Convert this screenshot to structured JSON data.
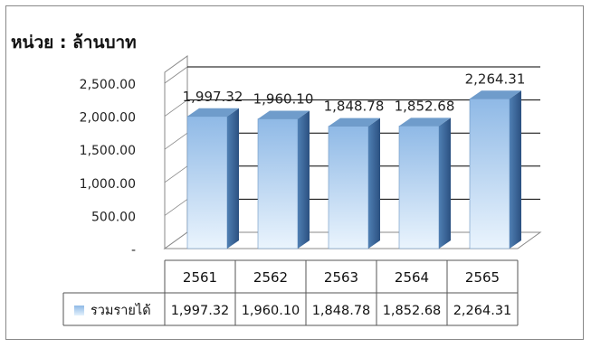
{
  "unit_label": "หน่วย : ล้านบาท",
  "chart_data": {
    "type": "bar",
    "title": "",
    "unit": "หน่วย : ล้านบาท",
    "categories": [
      "2561",
      "2562",
      "2563",
      "2564",
      "2565"
    ],
    "series": [
      {
        "name": "รวมรายได้",
        "values": [
          1997.32,
          1960.1,
          1848.78,
          1852.68,
          2264.31
        ]
      }
    ],
    "data_labels": [
      "1,997.32",
      "1,960.10",
      "1,848.78",
      "1,852.68",
      "2,264.31"
    ],
    "y_tick_labels": [
      "-",
      "500.00",
      "1,000.00",
      "1,500.00",
      "2,000.00",
      "2,500.00"
    ],
    "ylim": [
      0,
      2500
    ],
    "grid": true,
    "legend": "data-table",
    "colors": {
      "bar_front": "#a9cdf0",
      "bar_side": "#3f6d9e",
      "bar_top": "#6f9ccb",
      "grid": "#000000",
      "axis": "#888888"
    }
  }
}
